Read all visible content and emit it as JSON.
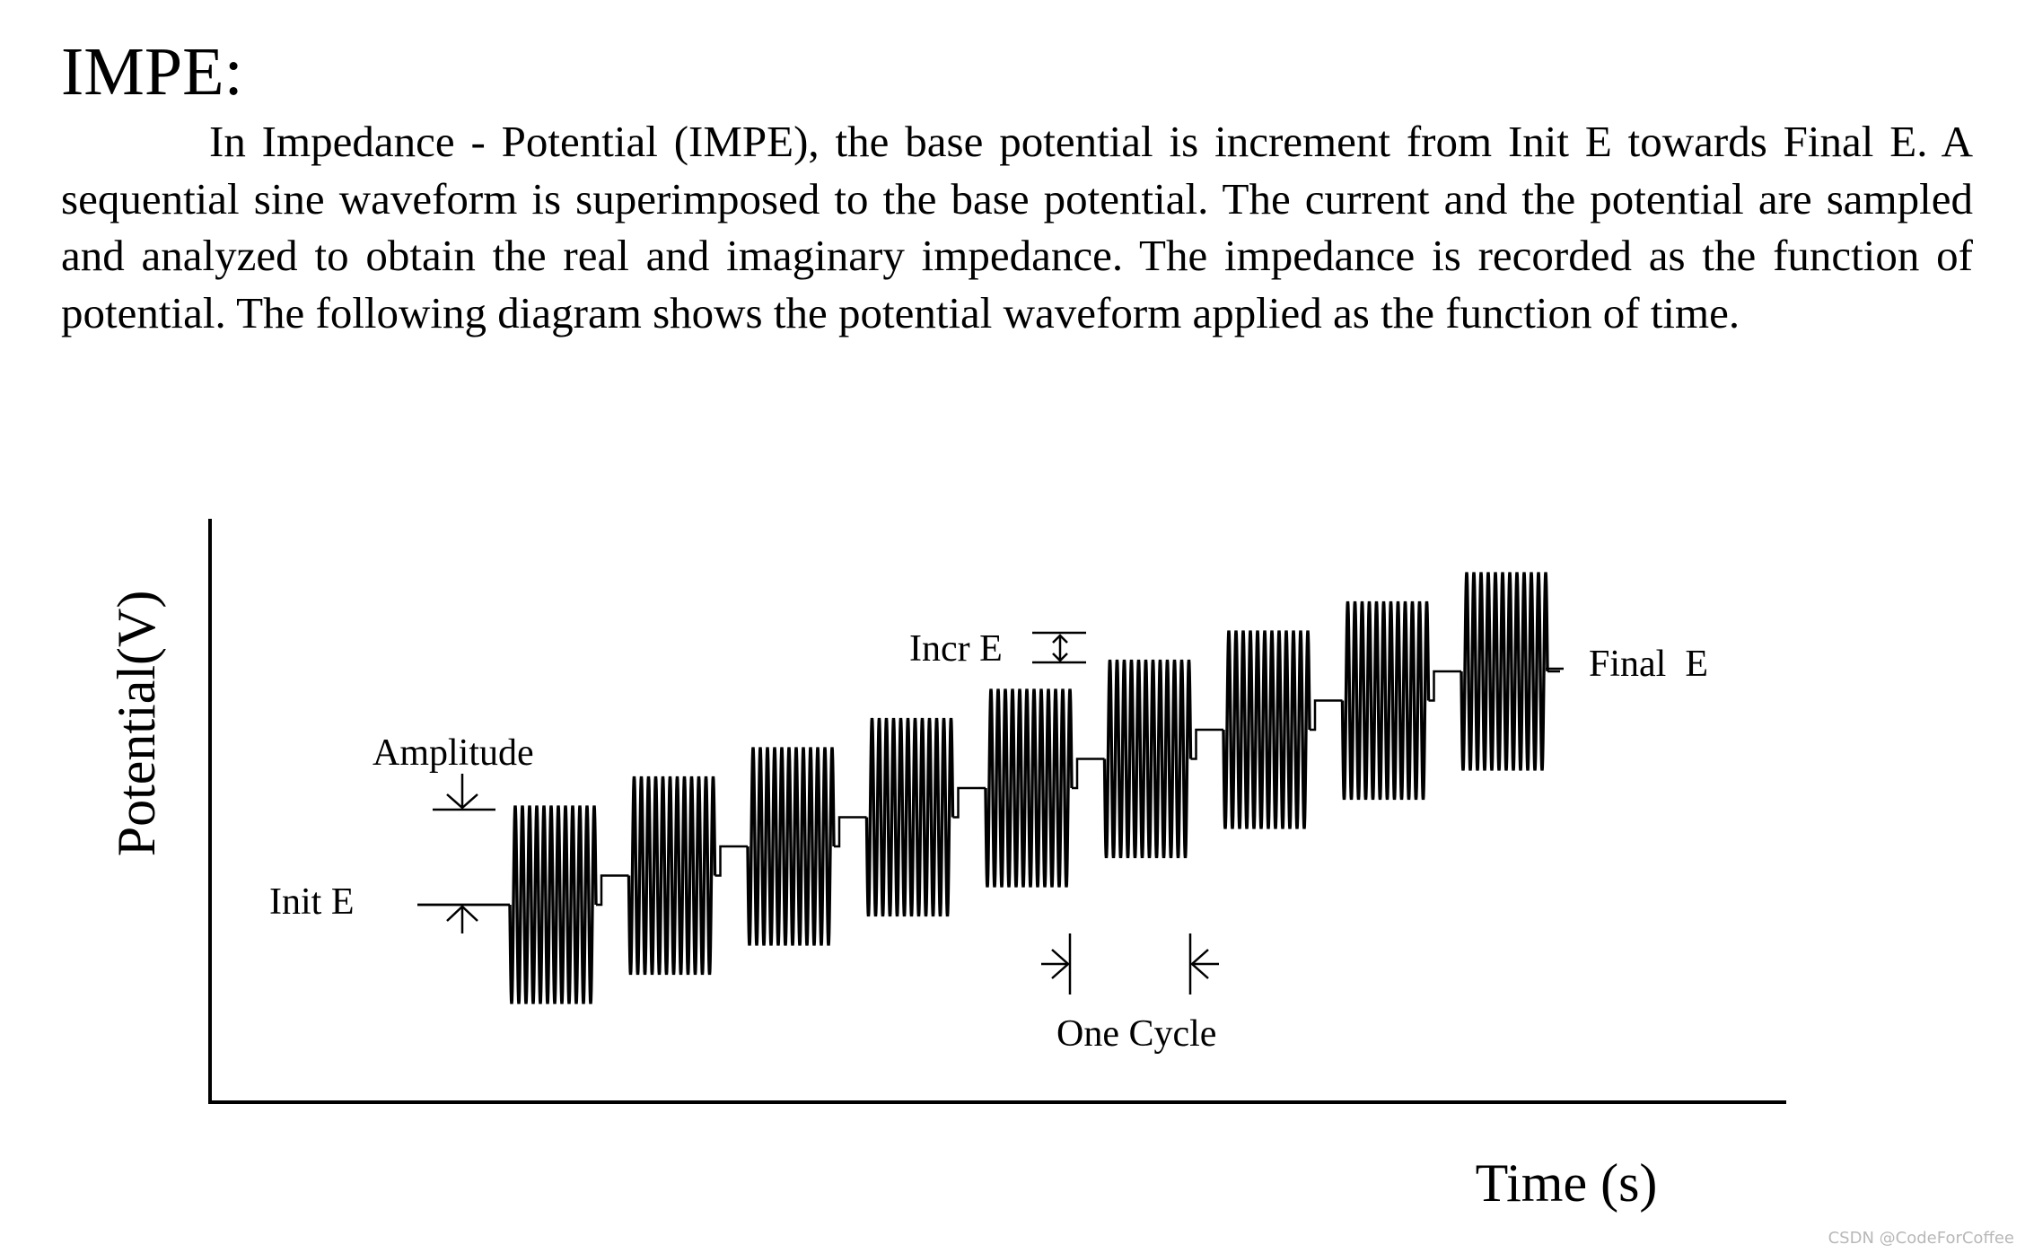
{
  "heading": "IMPE:",
  "paragraph": "In Impedance - Potential (IMPE), the base potential is increment from Init E towards Final E. A sequential sine waveform is superimposed to the base potential. The current and the potential are sampled and analyzed to obtain the real and imaginary impedance. The impedance is recorded as the function of potential. The following diagram shows the potential waveform applied as the function of time.",
  "diagram": {
    "y_axis_label": "Potential(V)",
    "x_axis_label": "Time (s)",
    "labels": {
      "amplitude": "Amplitude",
      "init_e": "Init E",
      "incr_e": "Incr E",
      "final_e": "Final  E",
      "one_cycle": "One Cycle"
    },
    "waveform": {
      "steps": 9,
      "sine_cycles_per_step": 12,
      "amplitude_in_incr_e_units": 3.4
    }
  },
  "watermark": "CSDN @CodeForCoffee"
}
